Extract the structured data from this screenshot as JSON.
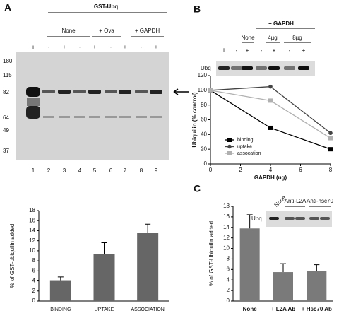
{
  "panels": {
    "a": {
      "label": "A",
      "header": "GST-Ubq",
      "groups": [
        "None",
        "+ Ova",
        "+ GAPDH"
      ],
      "lanes": [
        "i",
        "-",
        "+",
        "-",
        "+",
        "-",
        "+",
        "-",
        "+"
      ],
      "markers": [
        180,
        115,
        82,
        64,
        49,
        37
      ],
      "lane_numbers": [
        1,
        2,
        3,
        4,
        5,
        6,
        7,
        8,
        9
      ]
    },
    "b": {
      "label": "B",
      "group": "+ GAPDH",
      "conditions": [
        "None",
        "4µg",
        "8µg"
      ],
      "lanes": [
        "i",
        "-",
        "+",
        "-",
        "+",
        "-",
        "+"
      ],
      "band": "Ubq"
    },
    "c": {
      "label": "C",
      "conditions": [
        "None",
        "Anti-L2A",
        "Anti-hsc70"
      ],
      "band": "Ubq"
    }
  },
  "chart_data": [
    {
      "type": "bar",
      "y_label": "% of GST-ubiquilin added",
      "categories": [
        "BINDING",
        "UPTAKE",
        "ASSOCIATION"
      ],
      "values": [
        4.0,
        9.4,
        13.5
      ],
      "errors": [
        0.8,
        2.2,
        1.8
      ],
      "color": "#666666",
      "ylim": [
        0,
        18
      ],
      "yticks": [
        0,
        2,
        4,
        6,
        8,
        10,
        12,
        14,
        16,
        18
      ]
    },
    {
      "type": "line",
      "y_label": "Ubiquilin (% control)",
      "x_label": "GAPDH (ug)",
      "x": [
        0,
        4,
        8
      ],
      "xlim": [
        0,
        8
      ],
      "xticks": [
        0,
        2,
        4,
        6,
        8
      ],
      "ylim": [
        0,
        120
      ],
      "yticks": [
        0,
        20,
        40,
        60,
        80,
        100,
        120
      ],
      "legend": "lower left",
      "series": [
        {
          "name": "binding",
          "color": "#000000",
          "marker": "square",
          "values": [
            100,
            49,
            20
          ]
        },
        {
          "name": "uptake",
          "color": "#444444",
          "marker": "circle",
          "values": [
            100,
            105,
            42
          ]
        },
        {
          "name": "assocation",
          "color": "#b0b0b0",
          "marker": "square",
          "values": [
            100,
            86,
            35
          ]
        }
      ]
    },
    {
      "type": "bar",
      "y_label": "% of GST-Ubiquilin added",
      "categories": [
        "None",
        "+ L2A Ab",
        "+ Hsc70 Ab"
      ],
      "values": [
        13.8,
        5.5,
        5.7
      ],
      "errors": [
        2.6,
        1.6,
        1.2
      ],
      "color": "#7a7a7a",
      "ylim": [
        0,
        18
      ],
      "yticks": [
        0,
        2,
        4,
        6,
        8,
        10,
        12,
        14,
        16,
        18
      ]
    }
  ]
}
